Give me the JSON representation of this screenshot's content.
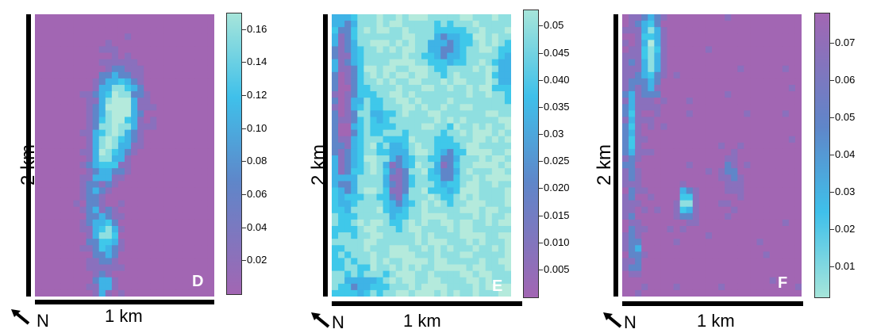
{
  "chart_data": [
    {
      "type": "heatmap",
      "panel_label": "D",
      "ylabel": "2 km",
      "xlabel": "1 km",
      "north_label": "N",
      "colorbar_ticks": [
        "0.16",
        "0.14",
        "0.12",
        "0.10",
        "0.08",
        "0.06",
        "0.04",
        "0.02"
      ],
      "colorbar_tick_values": [
        0.16,
        0.14,
        0.12,
        0.1,
        0.08,
        0.06,
        0.04,
        0.02
      ],
      "colorbar_range": [
        0.0,
        0.17
      ],
      "colorscale": [
        "#a266b3",
        "#5f86c9",
        "#3fc0ea",
        "#a6e5da"
      ],
      "orientation": "low_purple_high_cyan"
    },
    {
      "type": "heatmap",
      "panel_label": "E",
      "ylabel": "2 km",
      "xlabel": "1 km",
      "north_label": "N",
      "colorbar_ticks": [
        "0.05",
        "0.045",
        "0.040",
        "0.035",
        "0.03",
        "0.025",
        "0.020",
        "0.015",
        "0.010",
        "0.005"
      ],
      "colorbar_tick_values": [
        0.05,
        0.045,
        0.04,
        0.035,
        0.03,
        0.025,
        0.02,
        0.015,
        0.01,
        0.005
      ],
      "colorbar_range": [
        0.0,
        0.053
      ],
      "colorscale": [
        "#a266b3",
        "#5f86c9",
        "#3fc0ea",
        "#a6e5da"
      ],
      "orientation": "low_purple_high_cyan"
    },
    {
      "type": "heatmap",
      "panel_label": "F",
      "ylabel": "2 km",
      "xlabel": "1 km",
      "north_label": "N",
      "colorbar_ticks": [
        "0.07",
        "0.06",
        "0.05",
        "0.04",
        "0.03",
        "0.02",
        "0.01"
      ],
      "colorbar_tick_values": [
        0.07,
        0.06,
        0.05,
        0.04,
        0.03,
        0.02,
        0.01
      ],
      "colorbar_range": [
        0.002,
        0.078
      ],
      "colorscale": [
        "#a266b3",
        "#5f86c9",
        "#3fc0ea",
        "#a6e5da"
      ],
      "orientation": "low_cyan_high_purple"
    }
  ]
}
